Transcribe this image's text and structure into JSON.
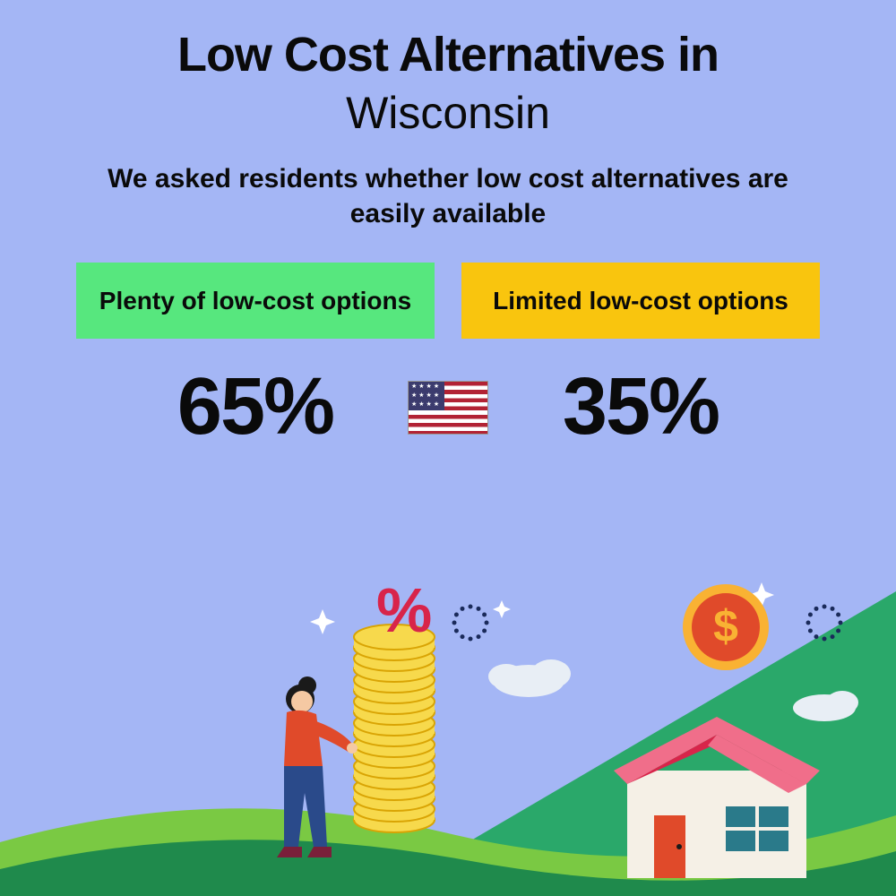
{
  "title": {
    "line1": "Low Cost Alternatives in",
    "location": "Wisconsin",
    "title_fontsize": 54,
    "location_fontsize": 50,
    "color": "#0a0a0a"
  },
  "subtitle": {
    "text": "We asked residents whether low cost alternatives are easily available",
    "fontsize": 30,
    "color": "#0a0a0a"
  },
  "options": [
    {
      "label": "Plenty of low-cost options",
      "value": "65%",
      "box_color": "#57e77e",
      "text_color": "#0a0a0a"
    },
    {
      "label": "Limited low-cost options",
      "value": "35%",
      "box_color": "#f9c50e",
      "text_color": "#0a0a0a"
    }
  ],
  "flag": {
    "name": "us-flag",
    "stripe_red": "#b22234",
    "stripe_white": "#ffffff",
    "canton": "#3c3b6e"
  },
  "background_color": "#a4b6f5",
  "illustration": {
    "ground_dark": "#1f8a4c",
    "ground_light": "#7ac943",
    "ground_diag": "#2aa86a",
    "house_wall": "#f5f0e6",
    "house_roof": "#d8244a",
    "house_roof_top": "#f06e8a",
    "house_door": "#e04a2a",
    "house_window": "#2a7a8a",
    "coin_fill": "#f7d94c",
    "coin_stroke": "#d9a404",
    "dollar_coin_fill": "#f9b233",
    "dollar_coin_inner": "#e04a2a",
    "percent_color": "#d8244a",
    "person_top": "#e04a2a",
    "person_pants": "#2a4a8a",
    "person_skin": "#f5c9a3",
    "person_hair": "#1a1a1a",
    "cloud": "#e8eef5",
    "sparkle": "#ffffff",
    "dots": "#1a2a5a"
  }
}
